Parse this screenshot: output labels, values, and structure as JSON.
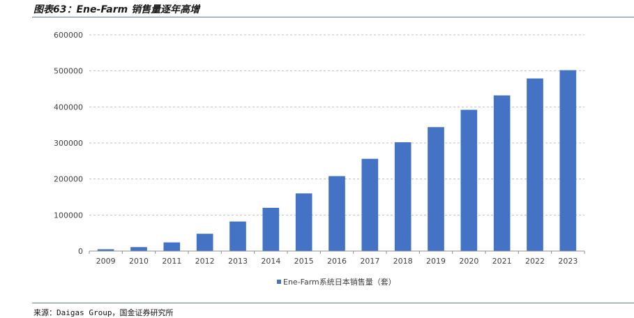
{
  "figure": {
    "title": "图表63：Ene-Farm 销售量逐年高增",
    "source": "来源：Daigas Group，国金证券研究所"
  },
  "colors": {
    "bar": "#4472C4",
    "grid": "#bfbfbf",
    "axis": "#8c8c8c",
    "rule": "#5b7fa6"
  },
  "chart_data": {
    "type": "bar",
    "categories": [
      "2009",
      "2010",
      "2011",
      "2012",
      "2013",
      "2014",
      "2015",
      "2016",
      "2017",
      "2018",
      "2019",
      "2020",
      "2021",
      "2022",
      "2023"
    ],
    "series": [
      {
        "name": "Ene-Farm系统日本销售量（套）",
        "values": [
          5000,
          11000,
          24000,
          48000,
          82000,
          120000,
          160000,
          208000,
          256000,
          302000,
          344000,
          392000,
          432000,
          479000,
          502000
        ]
      }
    ],
    "ylim": [
      0,
      600000
    ],
    "yticks": [
      "0",
      "100000",
      "200000",
      "300000",
      "400000",
      "500000",
      "600000"
    ],
    "grid": true,
    "legend_position": "bottom-center",
    "xlabel": "",
    "ylabel": ""
  }
}
